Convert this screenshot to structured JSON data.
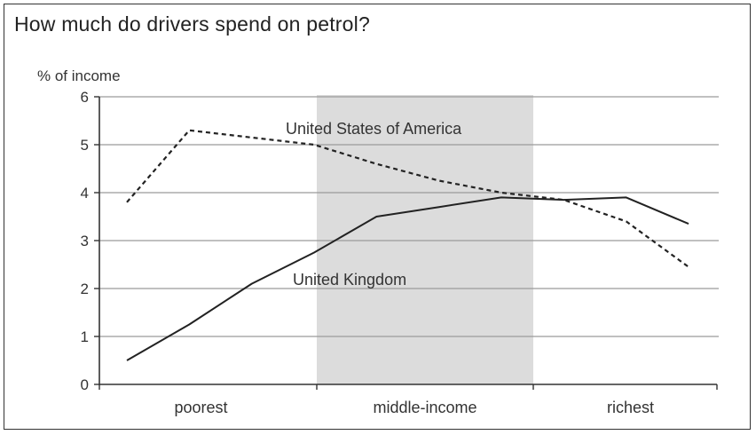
{
  "title": "How much do drivers spend on petrol?",
  "chart_data": {
    "type": "line",
    "title": "How much do drivers spend on petrol?",
    "ylabel": "% of income",
    "xlabel": "",
    "ylim": [
      0,
      6
    ],
    "yticks": [
      0,
      1,
      2,
      3,
      4,
      5,
      6
    ],
    "grid": true,
    "categories": [
      "poorest",
      "middle-income",
      "richest"
    ],
    "x": [
      1,
      2,
      3,
      4,
      5,
      6,
      7,
      8,
      9,
      10
    ],
    "shaded_region": {
      "category": "middle-income",
      "color": "#dcdcdc"
    },
    "series": [
      {
        "name": "United States of America",
        "style": "dashed",
        "values": [
          3.8,
          5.3,
          5.15,
          5.0,
          4.6,
          4.25,
          4.0,
          3.85,
          3.4,
          2.45
        ]
      },
      {
        "name": "United Kingdom",
        "style": "solid",
        "values": [
          0.5,
          1.25,
          2.1,
          2.75,
          3.5,
          3.7,
          3.9,
          3.85,
          3.9,
          3.35
        ]
      }
    ]
  }
}
